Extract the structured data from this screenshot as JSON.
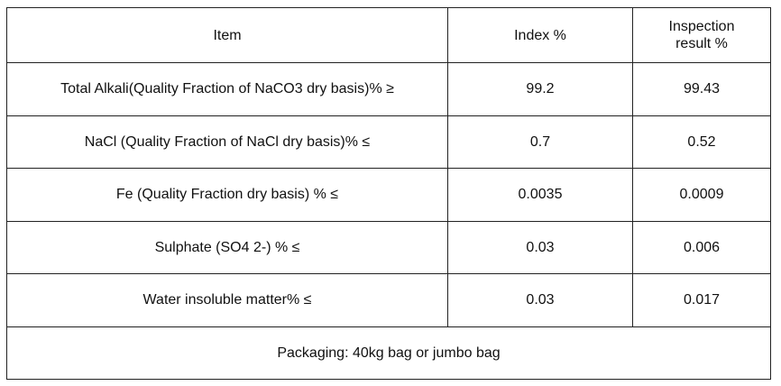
{
  "table": {
    "headers": {
      "item": "Item",
      "index": "Index %",
      "result": "Inspection result %"
    },
    "rows": [
      {
        "item": "Total Alkali(Quality Fraction of NaCO3 dry basis)% ≥",
        "index": "99.2",
        "result": "99.43"
      },
      {
        "item": "NaCl (Quality Fraction of NaCl dry basis)% ≤",
        "index": "0.7",
        "result": "0.52"
      },
      {
        "item": "Fe (Quality Fraction dry basis) % ≤",
        "index": "0.0035",
        "result": "0.0009"
      },
      {
        "item": "Sulphate (SO4 2-) % ≤",
        "index": "0.03",
        "result": "0.006"
      },
      {
        "item": "Water insoluble matter% ≤",
        "index": "0.03",
        "result": "0.017"
      }
    ],
    "footer": "Packaging: 40kg bag or jumbo bag"
  }
}
